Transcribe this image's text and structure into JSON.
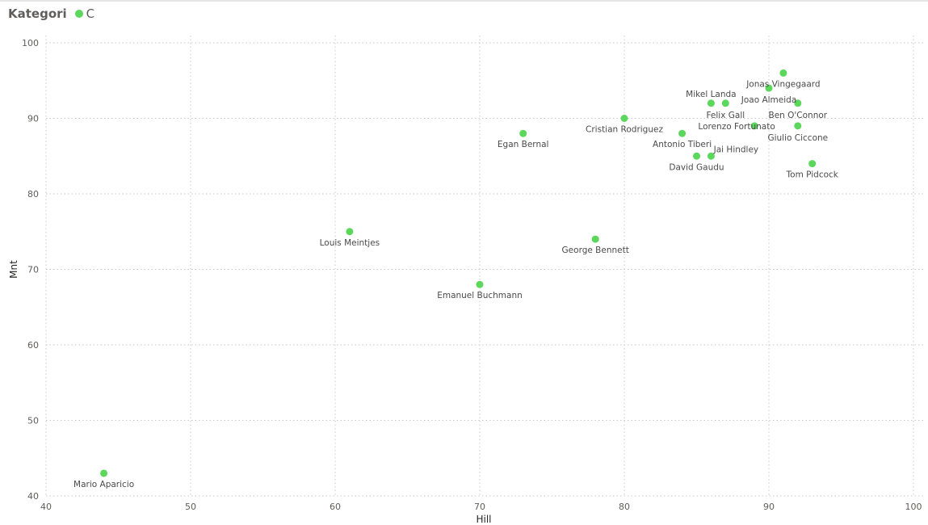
{
  "legend": {
    "title": "Kategori",
    "label": "C",
    "color": "#5BD75B"
  },
  "chart_data": {
    "type": "scatter",
    "xlabel": "Hill",
    "ylabel": "Mnt",
    "xlim": [
      40,
      100
    ],
    "ylim": [
      40,
      100
    ],
    "xticks": [
      40,
      50,
      60,
      70,
      80,
      90,
      100
    ],
    "yticks": [
      40,
      50,
      60,
      70,
      80,
      90,
      100
    ],
    "grid": true,
    "series": [
      {
        "name": "C",
        "color": "#5BD75B",
        "points": [
          {
            "label": "Jonas Vingegaard",
            "x": 91,
            "y": 96
          },
          {
            "label": "Joao Almeida",
            "x": 90,
            "y": 94
          },
          {
            "label": "Mikel Landa",
            "x": 86,
            "y": 92
          },
          {
            "label": "Felix Gall",
            "x": 87,
            "y": 92
          },
          {
            "label": "Ben O'Connor",
            "x": 92,
            "y": 92
          },
          {
            "label": "Cristian Rodriguez",
            "x": 80,
            "y": 90
          },
          {
            "label": "Lorenzo Fortunato",
            "x": 89,
            "y": 89
          },
          {
            "label": "Giulio Ciccone",
            "x": 92,
            "y": 89
          },
          {
            "label": "Egan Bernal",
            "x": 73,
            "y": 88
          },
          {
            "label": "Antonio Tiberi",
            "x": 84,
            "y": 88
          },
          {
            "label": "David Gaudu",
            "x": 85,
            "y": 85
          },
          {
            "label": "Jai Hindley",
            "x": 86,
            "y": 85
          },
          {
            "label": "Tom Pidcock",
            "x": 93,
            "y": 84
          },
          {
            "label": "Louis Meintjes",
            "x": 61,
            "y": 75
          },
          {
            "label": "George Bennett",
            "x": 78,
            "y": 74
          },
          {
            "label": "Emanuel Buchmann",
            "x": 70,
            "y": 68
          },
          {
            "label": "Mario Aparicio",
            "x": 44,
            "y": 43
          }
        ]
      }
    ]
  }
}
